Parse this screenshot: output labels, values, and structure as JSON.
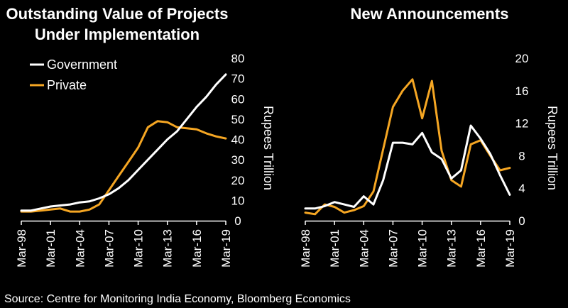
{
  "source": "Source: Centre for Monitoring India Economy, Bloomberg Economics",
  "chart_data": [
    {
      "type": "line",
      "title_lines": [
        "Outstanding Value of Projects",
        "Under Implementation"
      ],
      "ylabel": "Rupees Trillion",
      "ylim": [
        0,
        80
      ],
      "yticks": [
        "0",
        "10",
        "20",
        "30",
        "40",
        "50",
        "60",
        "70",
        "80"
      ],
      "xlim": [
        1998,
        2019
      ],
      "xticks": [
        "Mar-98",
        "Mar-01",
        "Mar-04",
        "Mar-07",
        "Mar-10",
        "Mar-13",
        "Mar-16",
        "Mar-19"
      ],
      "legend": [
        "Government",
        "Private"
      ],
      "series": [
        {
          "name": "Government",
          "color": "#ffffff",
          "x": [
            1998,
            1999,
            2000,
            2001,
            2002,
            2003,
            2004,
            2005,
            2006,
            2007,
            2008,
            2009,
            2010,
            2011,
            2012,
            2013,
            2014,
            2015,
            2016,
            2017,
            2018,
            2019
          ],
          "values": [
            5,
            5,
            6,
            7,
            7.5,
            8,
            9,
            9.5,
            11,
            13,
            16,
            20,
            25,
            30,
            35,
            40,
            44,
            50,
            56,
            61,
            67,
            72
          ]
        },
        {
          "name": "Private",
          "color": "#f5a623",
          "x": [
            1998,
            1999,
            2000,
            2001,
            2002,
            2003,
            2004,
            2005,
            2006,
            2007,
            2008,
            2009,
            2010,
            2011,
            2012,
            2013,
            2014,
            2015,
            2016,
            2017,
            2018,
            2019
          ],
          "values": [
            4.5,
            4.5,
            5,
            5.5,
            6,
            4.5,
            4.5,
            5.5,
            8,
            15,
            22,
            29,
            36,
            46,
            49,
            48.5,
            46,
            45.5,
            45,
            43,
            41.5,
            40.5
          ]
        }
      ]
    },
    {
      "type": "line",
      "title_lines": [
        "New Announcements"
      ],
      "ylabel": "Rupees Trillion",
      "ylim": [
        0,
        20
      ],
      "yticks": [
        "0",
        "4",
        "8",
        "12",
        "16",
        "20"
      ],
      "xlim": [
        1998,
        2019
      ],
      "xticks": [
        "Mar-98",
        "Mar-01",
        "Mar-04",
        "Mar-07",
        "Mar-10",
        "Mar-13",
        "Mar-16",
        "Mar-19"
      ],
      "series": [
        {
          "name": "Government",
          "color": "#ffffff",
          "x": [
            1998,
            1999,
            2000,
            2001,
            2002,
            2003,
            2004,
            2005,
            2006,
            2007,
            2008,
            2009,
            2010,
            2011,
            2012,
            2013,
            2014,
            2015,
            2016,
            2017,
            2018,
            2019
          ],
          "values": [
            1.5,
            1.5,
            1.8,
            2.3,
            2,
            1.7,
            3,
            2,
            5,
            9.6,
            9.6,
            9.4,
            10.8,
            8.4,
            7.6,
            5.2,
            6.2,
            11.7,
            10.1,
            8.2,
            5.6,
            3.2
          ]
        },
        {
          "name": "Private",
          "color": "#f5a623",
          "x": [
            1998,
            1999,
            2000,
            2001,
            2002,
            2003,
            2004,
            2005,
            2006,
            2007,
            2008,
            2009,
            2010,
            2011,
            2012,
            2013,
            2014,
            2015,
            2016,
            2017,
            2018,
            2019
          ],
          "values": [
            1,
            0.8,
            2,
            1.7,
            1,
            1.3,
            1.8,
            3.6,
            8.8,
            14,
            16,
            17.4,
            12.6,
            17.2,
            8.6,
            5,
            4.2,
            9.4,
            9.9,
            8,
            6.2,
            6.5
          ]
        }
      ]
    }
  ]
}
